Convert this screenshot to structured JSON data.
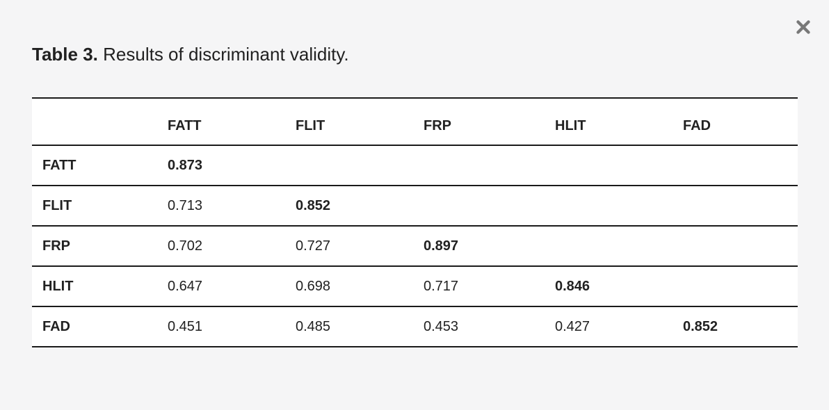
{
  "caption": {
    "label": "Table 3.",
    "text": "Results of discriminant validity."
  },
  "chart_data": {
    "type": "table",
    "title": "Table 3. Results of discriminant validity.",
    "columns": [
      "",
      "FATT",
      "FLIT",
      "FRP",
      "HLIT",
      "FAD"
    ],
    "rows": [
      {
        "label": "FATT",
        "values": [
          "0.873",
          "",
          "",
          "",
          ""
        ]
      },
      {
        "label": "FLIT",
        "values": [
          "0.713",
          "0.852",
          "",
          "",
          ""
        ]
      },
      {
        "label": "FRP",
        "values": [
          "0.702",
          "0.727",
          "0.897",
          "",
          ""
        ]
      },
      {
        "label": "HLIT",
        "values": [
          "0.647",
          "0.698",
          "0.717",
          "0.846",
          ""
        ]
      },
      {
        "label": "FAD",
        "values": [
          "0.451",
          "0.485",
          "0.453",
          "0.427",
          "0.852"
        ]
      }
    ],
    "diagonal_bold": true,
    "layout": {
      "grid": "horizontal-rules-only",
      "header_row": true,
      "header_column": true
    }
  },
  "icons": {
    "close": "✕"
  },
  "colors": {
    "page_background": "#f5f5f6",
    "table_background": "#ffffff",
    "border": "#1a1a1a",
    "text": "#212121",
    "close_icon": "#787878"
  }
}
